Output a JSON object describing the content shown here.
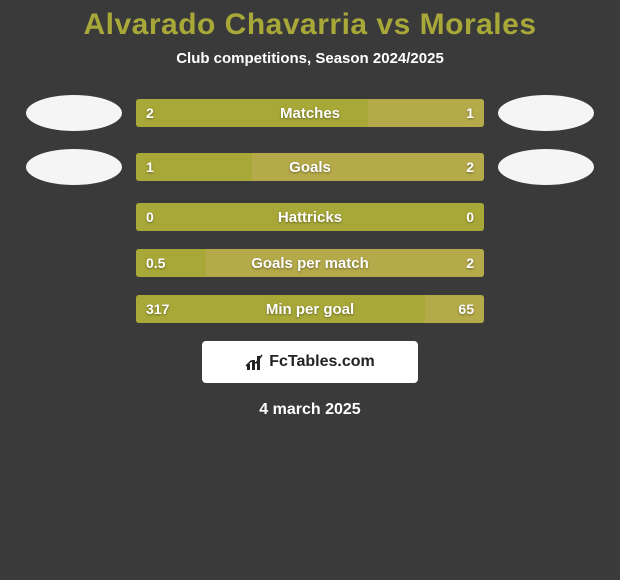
{
  "title": "Alvarado Chavarria vs Morales",
  "subtitle": "Club competitions, Season 2024/2025",
  "date": "4 march 2025",
  "brand": "FcTables.com",
  "colors": {
    "left": "#a8a839",
    "right": "#b5aa4a",
    "bar_bg": "#a8a839",
    "background": "#3a3a3a"
  },
  "bars": [
    {
      "label": "Matches",
      "left_val": "2",
      "right_val": "1",
      "left_pct": 66.7,
      "right_pct": 33.3,
      "show_avatars": true
    },
    {
      "label": "Goals",
      "left_val": "1",
      "right_val": "2",
      "left_pct": 33.3,
      "right_pct": 66.7,
      "show_avatars": true
    },
    {
      "label": "Hattricks",
      "left_val": "0",
      "right_val": "0",
      "left_pct": 100,
      "right_pct": 0,
      "show_avatars": false
    },
    {
      "label": "Goals per match",
      "left_val": "0.5",
      "right_val": "2",
      "left_pct": 20,
      "right_pct": 80,
      "show_avatars": false
    },
    {
      "label": "Min per goal",
      "left_val": "317",
      "right_val": "65",
      "left_pct": 83,
      "right_pct": 17,
      "show_avatars": false
    }
  ]
}
